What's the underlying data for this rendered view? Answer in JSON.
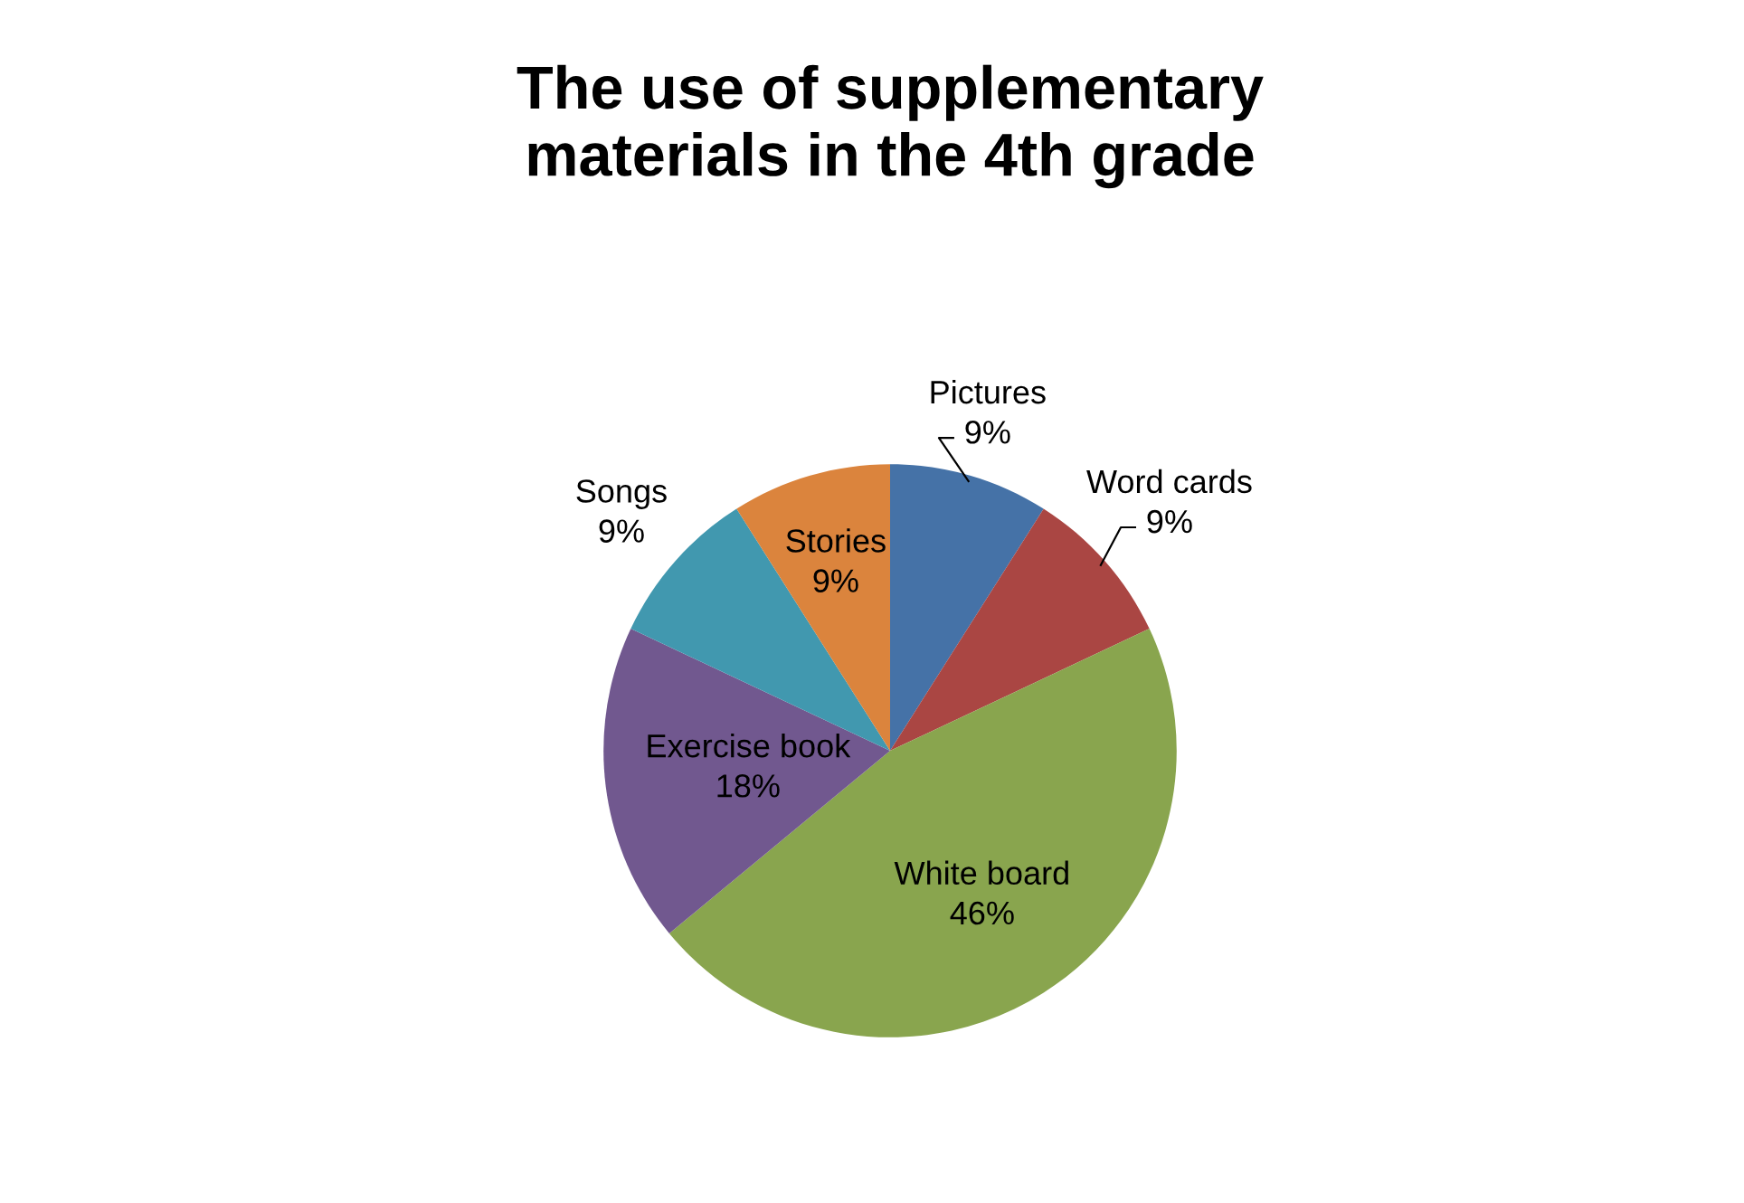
{
  "chart_data": {
    "type": "pie",
    "title": "The use of supplementary materials in the 4th grade",
    "categories": [
      "Pictures",
      "Word cards",
      "White board",
      "Exercise book",
      "Songs",
      "Stories"
    ],
    "values": [
      9,
      9,
      46,
      18,
      9,
      9
    ],
    "colors": [
      "#4572a7",
      "#aa4643",
      "#89a54e",
      "#71588f",
      "#4198af",
      "#db843d"
    ],
    "value_labels": [
      "9%",
      "9%",
      "46%",
      "18%",
      "9%",
      "9%"
    ],
    "legend": false
  }
}
